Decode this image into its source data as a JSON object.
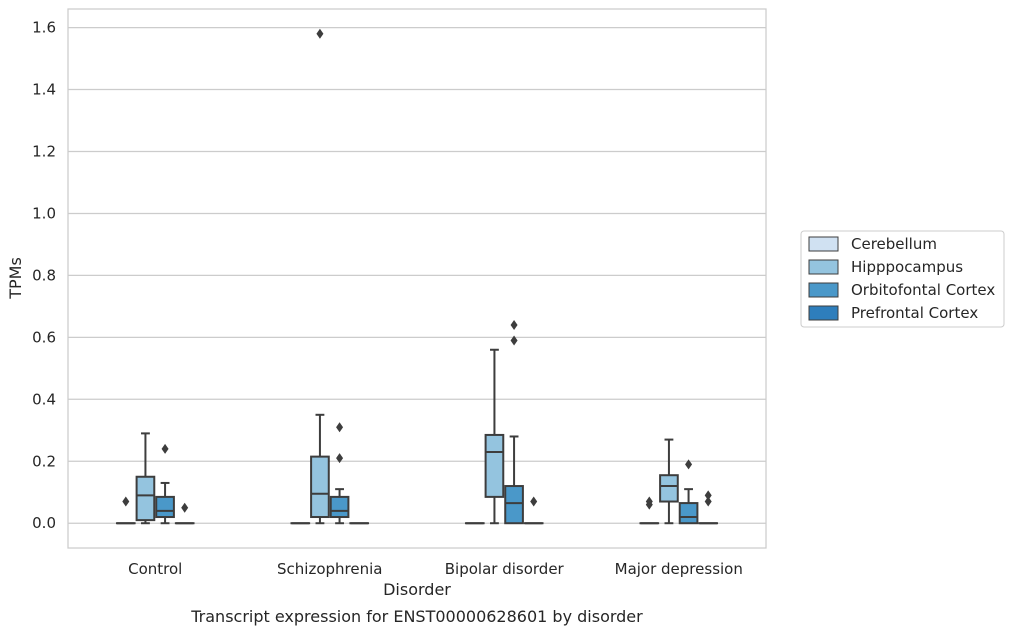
{
  "chart_data": {
    "type": "box",
    "caption": "Transcript expression for ENST00000628601 by disorder",
    "xlabel": "Disorder",
    "ylabel": "TPMs",
    "ylim": [
      -0.08,
      1.66
    ],
    "yticks": [
      "0.0",
      "0.2",
      "0.4",
      "0.6",
      "0.8",
      "1.0",
      "1.2",
      "1.4",
      "1.6"
    ],
    "grid": "horizontal",
    "legend_position": "right",
    "categories": [
      "Control",
      "Schizophrenia",
      "Bipolar disorder",
      "Major depression"
    ],
    "series": [
      {
        "name": "Cerebellum",
        "color": "#d0e1f2",
        "boxes": [
          {
            "q1": 0.0,
            "median": 0.0,
            "q3": 0.0,
            "whisker_low": 0.0,
            "whisker_high": 0.0,
            "outliers": [
              0.07
            ]
          },
          {
            "q1": 0.0,
            "median": 0.0,
            "q3": 0.0,
            "whisker_low": 0.0,
            "whisker_high": 0.0,
            "outliers": []
          },
          {
            "q1": 0.0,
            "median": 0.0,
            "q3": 0.0,
            "whisker_low": 0.0,
            "whisker_high": 0.0,
            "outliers": []
          },
          {
            "q1": 0.0,
            "median": 0.0,
            "q3": 0.0,
            "whisker_low": 0.0,
            "whisker_high": 0.0,
            "outliers": [
              0.06,
              0.07
            ]
          }
        ]
      },
      {
        "name": "Hipppocampus",
        "color": "#94c4df",
        "boxes": [
          {
            "q1": 0.01,
            "median": 0.09,
            "q3": 0.15,
            "whisker_low": 0.0,
            "whisker_high": 0.29,
            "outliers": []
          },
          {
            "q1": 0.02,
            "median": 0.095,
            "q3": 0.215,
            "whisker_low": 0.0,
            "whisker_high": 0.35,
            "outliers": [
              1.58
            ]
          },
          {
            "q1": 0.085,
            "median": 0.23,
            "q3": 0.285,
            "whisker_low": 0.0,
            "whisker_high": 0.56,
            "outliers": []
          },
          {
            "q1": 0.07,
            "median": 0.12,
            "q3": 0.155,
            "whisker_low": 0.0,
            "whisker_high": 0.27,
            "outliers": []
          }
        ]
      },
      {
        "name": "Orbitofontal Cortex",
        "color": "#4a98c9",
        "boxes": [
          {
            "q1": 0.02,
            "median": 0.04,
            "q3": 0.085,
            "whisker_low": 0.0,
            "whisker_high": 0.13,
            "outliers": [
              0.24
            ]
          },
          {
            "q1": 0.02,
            "median": 0.04,
            "q3": 0.085,
            "whisker_low": 0.0,
            "whisker_high": 0.11,
            "outliers": [
              0.21,
              0.31
            ]
          },
          {
            "q1": 0.0,
            "median": 0.065,
            "q3": 0.12,
            "whisker_low": 0.0,
            "whisker_high": 0.28,
            "outliers": [
              0.59,
              0.64
            ]
          },
          {
            "q1": 0.0,
            "median": 0.02,
            "q3": 0.065,
            "whisker_low": 0.0,
            "whisker_high": 0.11,
            "outliers": [
              0.19
            ]
          }
        ]
      },
      {
        "name": "Prefrontal Cortex",
        "color": "#2e7ebc",
        "boxes": [
          {
            "q1": 0.0,
            "median": 0.0,
            "q3": 0.0,
            "whisker_low": 0.0,
            "whisker_high": 0.0,
            "outliers": [
              0.05
            ]
          },
          {
            "q1": 0.0,
            "median": 0.0,
            "q3": 0.0,
            "whisker_low": 0.0,
            "whisker_high": 0.0,
            "outliers": []
          },
          {
            "q1": 0.0,
            "median": 0.0,
            "q3": 0.0,
            "whisker_low": 0.0,
            "whisker_high": 0.0,
            "outliers": [
              0.07
            ]
          },
          {
            "q1": 0.0,
            "median": 0.0,
            "q3": 0.0,
            "whisker_low": 0.0,
            "whisker_high": 0.0,
            "outliers": [
              0.07,
              0.09
            ]
          }
        ]
      }
    ]
  }
}
